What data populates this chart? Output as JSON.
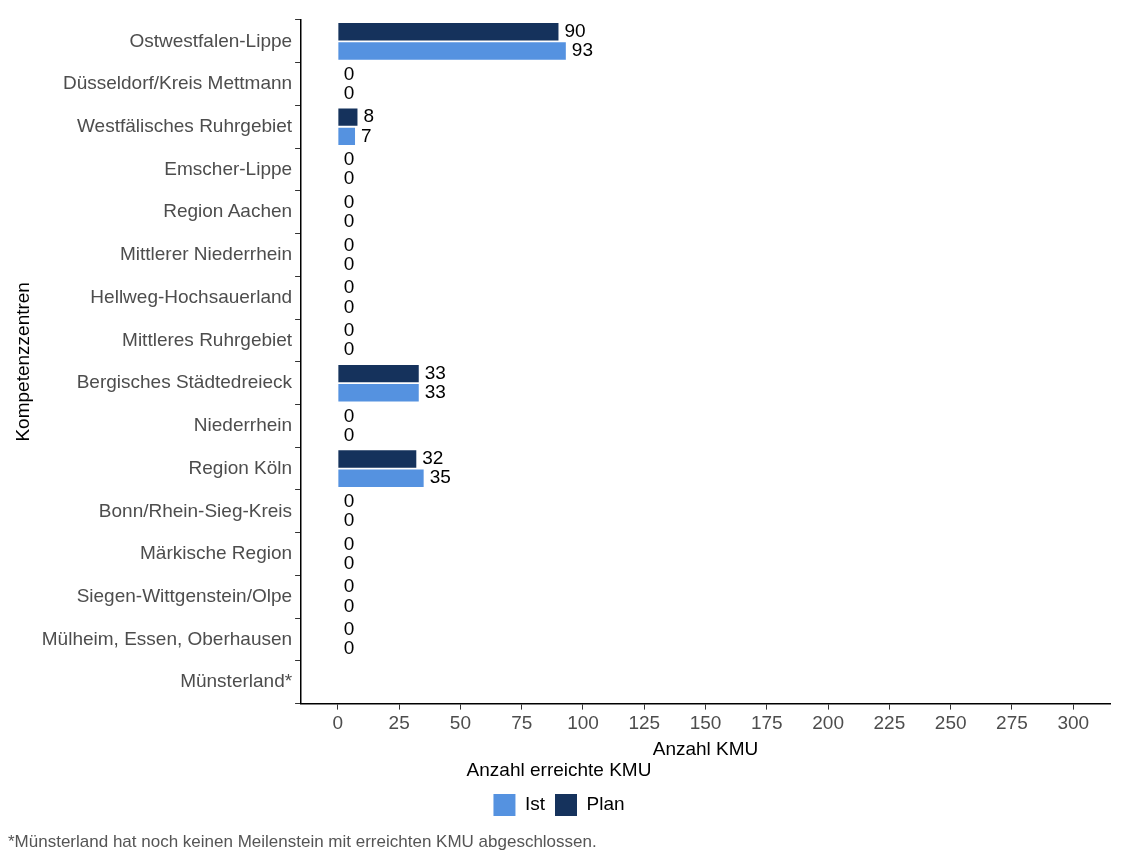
{
  "chart_data": {
    "type": "bar",
    "orientation": "horizontal",
    "xlabel": "Anzahl KMU",
    "ylabel": "Kompetenzzentren",
    "legend_title": "Anzahl erreichte KMU",
    "categories": [
      "Ostwestfalen-Lippe",
      "Düsseldorf/Kreis Mettmann",
      "Westfälisches Ruhrgebiet",
      "Emscher-Lippe",
      "Region Aachen",
      "Mittlerer Niederrhein",
      "Hellweg-Hochsauerland",
      "Mittleres Ruhrgebiet",
      "Bergisches Städtedreieck",
      "Niederrhein",
      "Region Köln",
      "Bonn/Rhein-Sieg-Kreis",
      "Märkische Region",
      "Siegen-Wittgenstein/Olpe",
      "Mülheim, Essen, Oberhausen",
      "Münsterland*"
    ],
    "series": [
      {
        "name": "Ist",
        "color": "#5592e0",
        "values": [
          93,
          0,
          7,
          0,
          0,
          0,
          0,
          0,
          33,
          0,
          35,
          0,
          0,
          0,
          0,
          null
        ]
      },
      {
        "name": "Plan",
        "color": "#15325c",
        "values": [
          90,
          0,
          8,
          0,
          0,
          0,
          0,
          0,
          33,
          0,
          32,
          0,
          0,
          0,
          0,
          null
        ]
      }
    ],
    "xlim": [
      -15,
      315
    ],
    "xticks": [
      0,
      25,
      50,
      75,
      100,
      125,
      150,
      175,
      200,
      225,
      250,
      275,
      300
    ],
    "grid": false,
    "legend": "bottom",
    "data_labels": true,
    "annotations": [
      "*Münsterland hat noch keinen Meilenstein mit erreichten KMU abgeschlossen."
    ]
  }
}
